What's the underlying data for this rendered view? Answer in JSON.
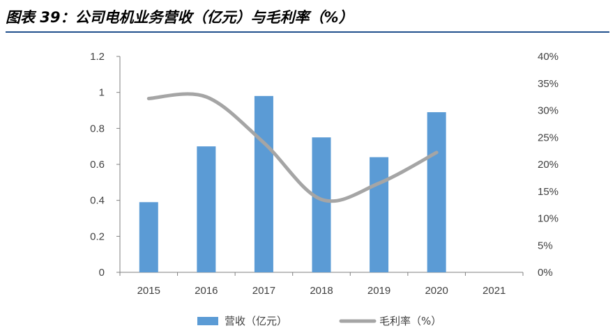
{
  "header": {
    "figure_title": "图表 39：公司电机业务营收（亿元）与毛利率（%）"
  },
  "colors": {
    "bar": "#5b9bd5",
    "line": "#a5a5a5",
    "axis": "#7f7f7f",
    "title_rule": "#1f4e8c"
  },
  "chart_data": {
    "type": "bar",
    "title": "公司电机业务营收（亿元）与毛利率（%）",
    "categories": [
      "2015",
      "2016",
      "2017",
      "2018",
      "2019",
      "2020",
      "2021"
    ],
    "series": [
      {
        "name": "营收（亿元）",
        "type": "bar",
        "axis": "left",
        "values": [
          0.39,
          0.7,
          0.98,
          0.75,
          0.64,
          0.89,
          null
        ]
      },
      {
        "name": "毛利率（%）",
        "type": "line",
        "smooth": true,
        "axis": "right",
        "values": [
          0.322,
          0.325,
          0.24,
          0.135,
          0.165,
          0.222,
          null
        ]
      }
    ],
    "y_left": {
      "ylim": [
        0,
        1.2
      ],
      "ticks": [
        0,
        0.2,
        0.4,
        0.6,
        0.8,
        1,
        1.2
      ],
      "tick_labels": [
        "0",
        "0.2",
        "0.4",
        "0.6",
        "0.8",
        "1",
        "1.2"
      ]
    },
    "y_right": {
      "ylim": [
        0,
        0.4
      ],
      "ticks": [
        0,
        0.05,
        0.1,
        0.15,
        0.2,
        0.25,
        0.3,
        0.35,
        0.4
      ],
      "tick_labels": [
        "0%",
        "5%",
        "10%",
        "15%",
        "20%",
        "25%",
        "30%",
        "35%",
        "40%"
      ]
    },
    "legend": {
      "placement": "bottom",
      "entries": [
        "营收（亿元）",
        "毛利率（%）"
      ]
    },
    "grid": false
  }
}
